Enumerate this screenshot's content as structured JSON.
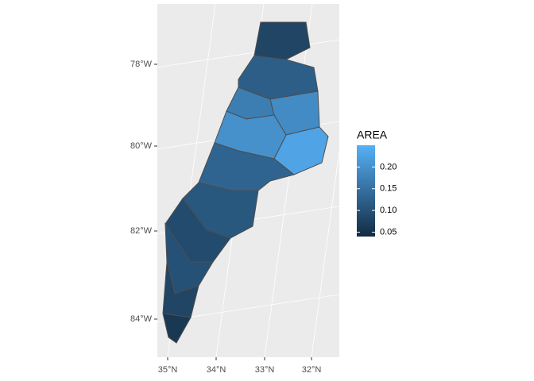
{
  "map": {
    "y_axis_labels": [
      "78°W",
      "80°W",
      "82°W",
      "84°W"
    ],
    "x_axis_labels": [
      "35°N",
      "34°N",
      "33°N",
      "32°N"
    ],
    "legend": {
      "title": "AREA",
      "limits": [
        0.04,
        0.25
      ],
      "low_color": "#132B43",
      "high_color": "#56B1F7",
      "ticks": [
        0.05,
        {
          "value": 0.1,
          "label": "0.10"
        },
        0.15,
        {
          "value": 0.2,
          "label": "0.20"
        }
      ]
    },
    "regions": [
      0.08,
      0.12,
      0.17,
      0.19,
      0.23,
      0.2,
      0.13,
      0.11,
      0.09,
      0.1,
      0.08,
      0.06
    ]
  }
}
